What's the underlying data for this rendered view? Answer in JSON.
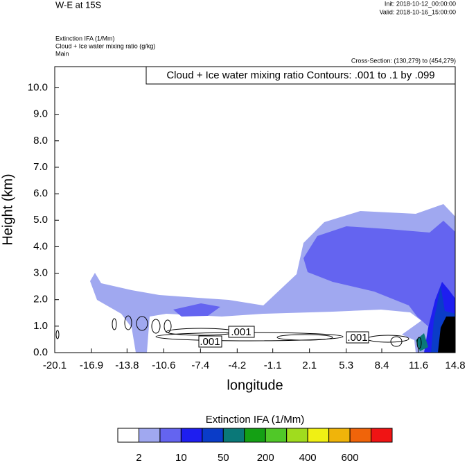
{
  "chart_data": {
    "type": "contour",
    "title": "W-E at 15S",
    "init": "Init: 2018-10-12_00:00:00",
    "valid": "Valid: 2018-10-16_15:00:00",
    "field_1": "Extinction IFA   (1/Mm)",
    "field_2": "Cloud + Ice water mixing ratio   (g/kg)",
    "field_3": "Main",
    "cross_section": "Cross-Section: (130,279) to (454,279)",
    "contour_info": "Cloud + Ice water mixing ratio Contours: .001 to .1 by .099",
    "contour_labels": [
      ".001",
      ".001",
      ".001"
    ],
    "xlabel": "longitude",
    "ylabel": "Height (km)",
    "xlim": [
      -20.1,
      14.8
    ],
    "xticks": [
      -20.1,
      -16.9,
      -13.8,
      -10.6,
      -7.4,
      -4.2,
      -1.1,
      2.1,
      5.3,
      8.4,
      11.6,
      14.8
    ],
    "ylim": [
      0,
      10.8
    ],
    "yticks": [
      {
        "value": 0,
        "label": "0.0"
      },
      {
        "value": 1,
        "label": "1.0"
      },
      {
        "value": 2,
        "label": "2.0"
      },
      {
        "value": 3,
        "label": "3.0"
      },
      {
        "value": 4,
        "label": "4.0"
      },
      {
        "value": 5,
        "label": "5.0"
      },
      {
        "value": 6,
        "label": "6.0"
      },
      {
        "value": 7,
        "label": "7.0"
      },
      {
        "value": 8,
        "label": "8.0"
      },
      {
        "value": 9,
        "label": "9.0"
      },
      {
        "value": 10,
        "label": "10.0"
      }
    ],
    "colorbar": {
      "title": "Extinction IFA  (1/Mm)",
      "colors": [
        "#ffffff",
        "#a0a8f0",
        "#6464f0",
        "#1e1ef0",
        "#0a3cc8",
        "#0a7878",
        "#14a014",
        "#50c828",
        "#a0dc1e",
        "#f0f014",
        "#f0b40a",
        "#f0640a",
        "#f01414"
      ],
      "levels": [
        2,
        null,
        10,
        null,
        50,
        null,
        200,
        null,
        400,
        null,
        600,
        null
      ]
    }
  }
}
